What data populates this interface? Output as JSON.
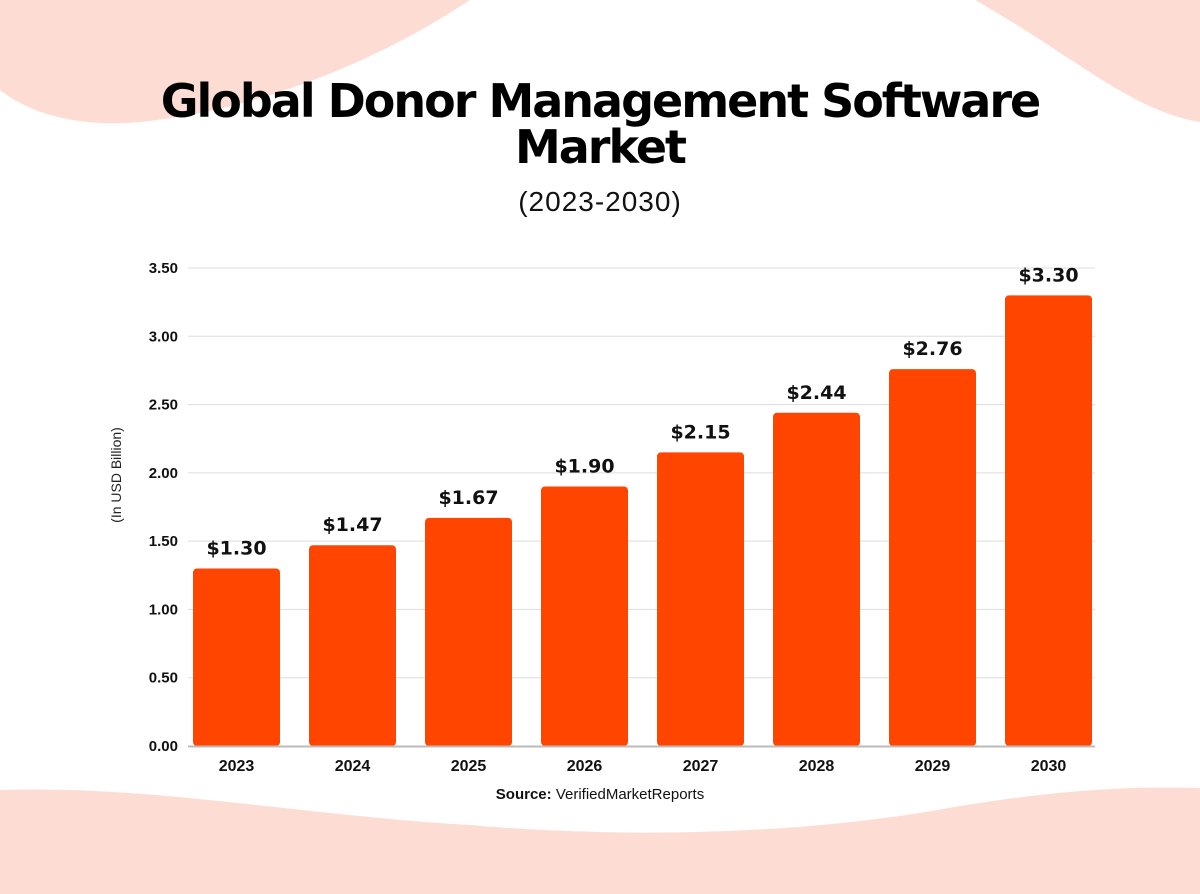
{
  "colors": {
    "bar": "#FF4500",
    "background_accent": "#FDDDD3",
    "grid": "#DDDDDD"
  },
  "title_line1": "Global Donor Management Software",
  "title_line2": "Market",
  "subtitle": "(2023-2030)",
  "source_label": "Source:",
  "source_value": "VerifiedMarketReports",
  "chart_data": {
    "type": "bar",
    "title": "Global Donor Management Software Market",
    "subtitle": "(2023-2030)",
    "xlabel": "",
    "ylabel": "(In USD Billion)",
    "ylim": [
      0,
      3.5
    ],
    "yticks": [
      "0.00",
      "0.50",
      "1.00",
      "1.50",
      "2.00",
      "2.50",
      "3.00",
      "3.50"
    ],
    "grid": true,
    "categories": [
      "2023",
      "2024",
      "2025",
      "2026",
      "2027",
      "2028",
      "2029",
      "2030"
    ],
    "values": [
      1.3,
      1.47,
      1.67,
      1.9,
      2.15,
      2.44,
      2.76,
      3.3
    ],
    "data_labels": [
      "$1.30",
      "$1.47",
      "$1.67",
      "$1.90",
      "$2.15",
      "$2.44",
      "$2.76",
      "$3.30"
    ]
  }
}
